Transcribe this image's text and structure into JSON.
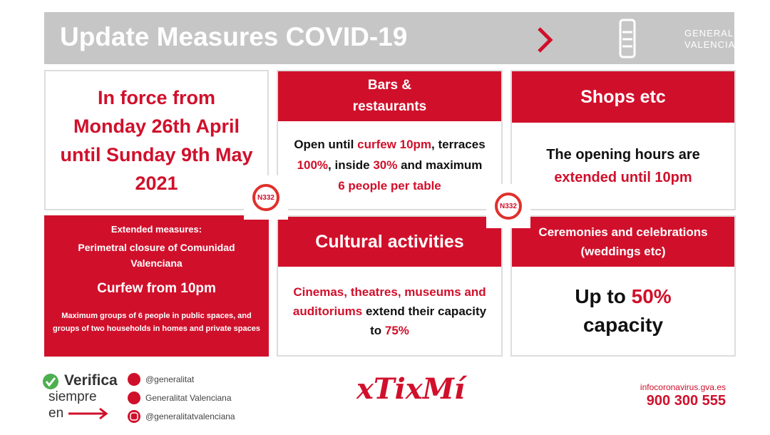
{
  "header": {
    "title": "Update Measures COVID-19",
    "logo": [
      "GENERALITAT",
      "VALENCIANA"
    ]
  },
  "in_force": "In force from Monday 26th April until Sunday 9th May 2021",
  "bars": {
    "title": "Bars & restaurants",
    "body": [
      {
        "text": "Open until "
      },
      {
        "text": "curfew 10pm",
        "color": "#d0102b"
      },
      {
        "text": ", terraces "
      },
      {
        "text": "100%",
        "color": "#d0102b"
      },
      {
        "text": ", inside "
      },
      {
        "text": "30%",
        "color": "#d0102b"
      },
      {
        "text": " and maximum "
      },
      {
        "text": "6 people per table",
        "color": "#d0102b"
      }
    ]
  },
  "shops": {
    "title": "Shops etc",
    "body": [
      {
        "text": "The opening hours are "
      },
      {
        "text": "extended until 10pm",
        "color": "#d0102b"
      }
    ]
  },
  "extended": {
    "title": "Extended measures:",
    "closure": "Perimetral closure of Comunidad Valenciana",
    "curfew": "Curfew from 10pm",
    "groups": "Maximum groups of 6 people in public spaces, and groups of two households in homes and private spaces"
  },
  "cultural": {
    "title": "Cultural activities",
    "body": [
      {
        "text": "Cinemas, theatres, museums and auditoriums",
        "color": "#d0102b"
      },
      {
        "text": " extend their capacity to "
      },
      {
        "text": "75%",
        "color": "#d0102b"
      }
    ]
  },
  "ceremonies": {
    "title": "Ceremonies and celebrations (weddings etc)",
    "body": [
      {
        "text": "Up to "
      },
      {
        "text": "50%",
        "color": "#d0102b"
      },
      {
        "text": " capacity"
      }
    ]
  },
  "badges": [
    "N332",
    "N332"
  ],
  "footer": {
    "verify": [
      "Verifica",
      "siempre",
      "en"
    ],
    "social": [
      "@generalitat",
      "Generalitat Valenciana",
      "@generalitatvalenciana"
    ],
    "brand": "xTixMí",
    "web": "infocoronavirus.gva.es",
    "phone": "900 300 555"
  }
}
